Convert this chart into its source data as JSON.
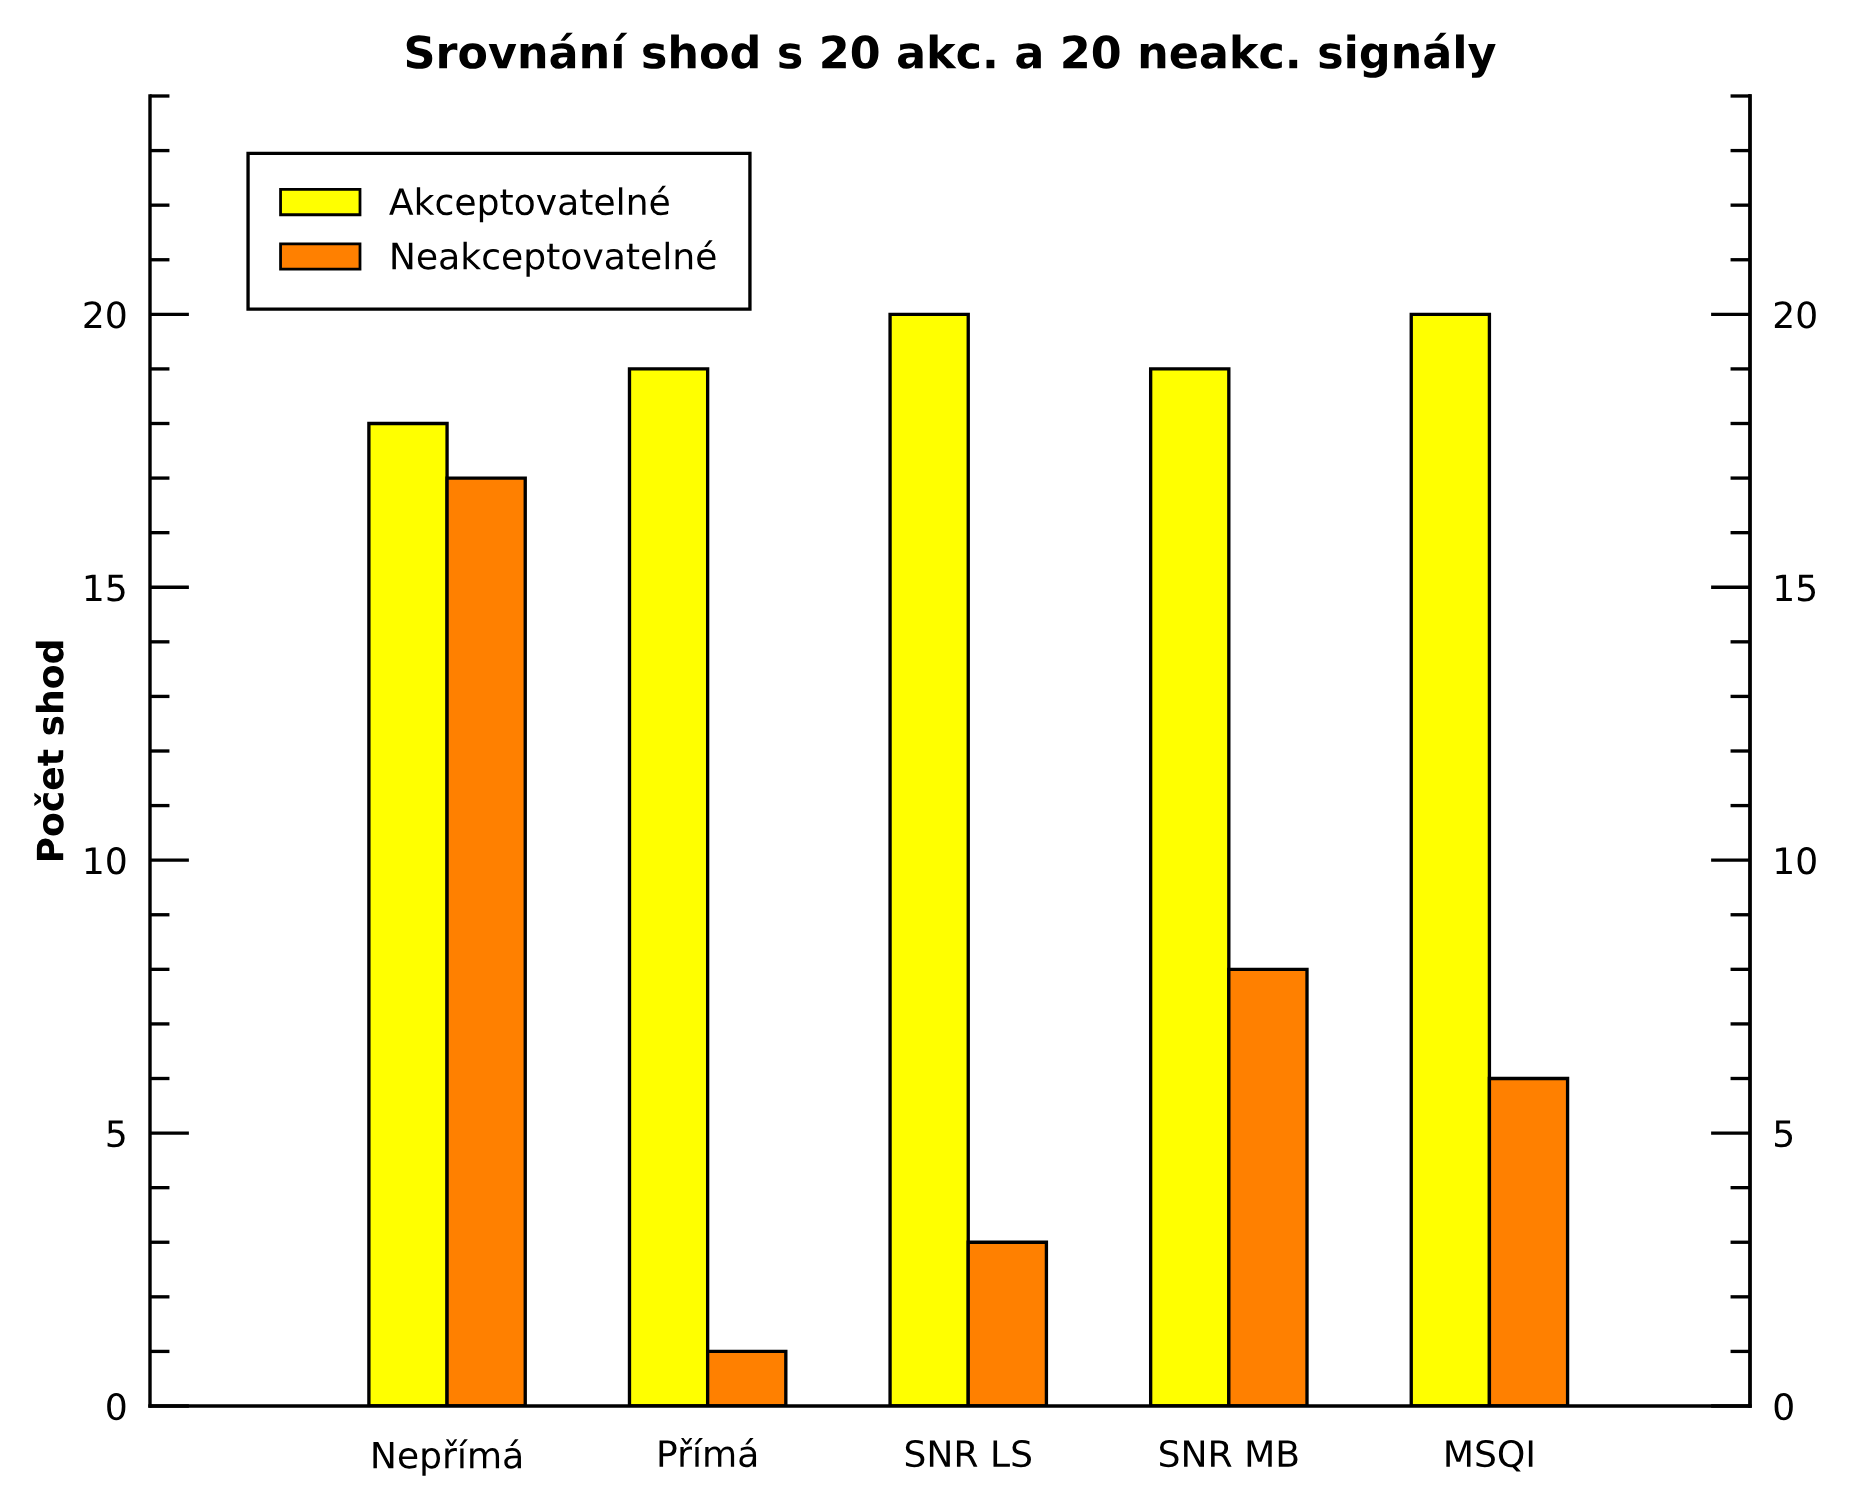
{
  "chart_data": {
    "type": "bar",
    "title": "Srovnání shod s 20 akc. a 20 neakc. signály",
    "ylabel": "Počet shod",
    "categories": [
      "Nepřímá",
      "Přímá",
      "SNR LS",
      "SNR MB",
      "MSQI"
    ],
    "series": [
      {
        "name": "Akceptovatelné",
        "color": "#ffff00",
        "values": [
          18,
          19,
          20,
          19,
          20
        ]
      },
      {
        "name": "Neakceptovatelné",
        "color": "#ff8000",
        "values": [
          17,
          1,
          3,
          8,
          6
        ]
      }
    ],
    "ylim": [
      0,
      24
    ],
    "yticks": [
      0,
      {
        "value": 1,
        "label": null
      },
      {
        "value": 2,
        "label": null
      },
      {
        "value": 3,
        "label": null
      },
      {
        "value": 4,
        "label": null
      },
      5,
      {
        "value": 6,
        "label": null
      },
      {
        "value": 7,
        "label": null
      },
      {
        "value": 8,
        "label": null
      },
      {
        "value": 9,
        "label": null
      },
      10,
      {
        "value": 11,
        "label": null
      },
      {
        "value": 12,
        "label": null
      },
      {
        "value": 13,
        "label": null
      },
      {
        "value": 14,
        "label": null
      },
      15,
      {
        "value": 16,
        "label": null
      },
      {
        "value": 17,
        "label": null
      },
      {
        "value": 18,
        "label": null
      },
      {
        "value": 19,
        "label": null
      },
      20,
      {
        "value": 21,
        "label": null
      },
      {
        "value": 22,
        "label": null
      },
      {
        "value": 23,
        "label": null
      },
      {
        "value": 24,
        "label": null
      }
    ],
    "y2lim": [
      0,
      24
    ],
    "y2ticks": [
      0,
      {
        "value": 1,
        "label": null
      },
      {
        "value": 2,
        "label": null
      },
      {
        "value": 3,
        "label": null
      },
      {
        "value": 4,
        "label": null
      },
      5,
      {
        "value": 6,
        "label": null
      },
      {
        "value": 7,
        "label": null
      },
      {
        "value": 8,
        "label": null
      },
      {
        "value": 9,
        "label": null
      },
      10,
      {
        "value": 11,
        "label": null
      },
      {
        "value": 12,
        "label": null
      },
      {
        "value": 13,
        "label": null
      },
      {
        "value": 14,
        "label": null
      },
      15,
      {
        "value": 16,
        "label": null
      },
      {
        "value": 17,
        "label": null
      },
      {
        "value": 18,
        "label": null
      },
      {
        "value": 19,
        "label": null
      },
      20,
      {
        "value": 21,
        "label": null
      },
      {
        "value": 22,
        "label": null
      },
      {
        "value": 23,
        "label": null
      },
      {
        "value": 24,
        "label": null
      }
    ],
    "legend": "top left",
    "grid": false
  }
}
